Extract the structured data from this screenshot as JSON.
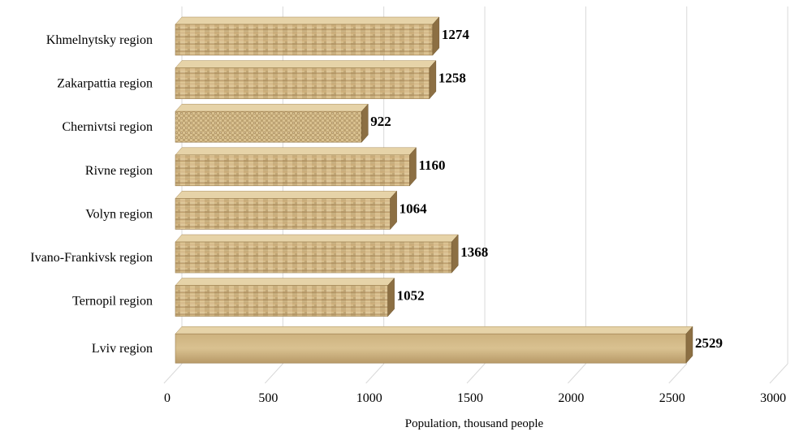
{
  "chart_data": {
    "type": "bar",
    "orientation": "horizontal",
    "style": "3d-textured",
    "categories": [
      "Khmelnytsky region",
      "Zakarpattia region",
      "Chernivtsi region",
      "Rivne region",
      "Volyn region",
      "Ivano-Frankivsk region",
      "Ternopil region",
      "Lviv region"
    ],
    "values": [
      1274,
      1258,
      922,
      1160,
      1064,
      1368,
      1052,
      2529
    ],
    "data_labels": [
      "1274",
      "1258",
      "922",
      "1160",
      "1064",
      "1368",
      "1052",
      "2529"
    ],
    "xlabel": "Population, thousand people",
    "xlim": [
      0,
      3000
    ],
    "xticks": [
      "0",
      "500",
      "1000",
      "1500",
      "2000",
      "2500",
      "3000"
    ],
    "grid": true,
    "colors": {
      "bar_base": "#c9ae7e",
      "bar_dark": "#8c6f43",
      "bar_light": "#e6d3a8",
      "gridline": "#d9d9d9",
      "text": "#000000"
    }
  }
}
